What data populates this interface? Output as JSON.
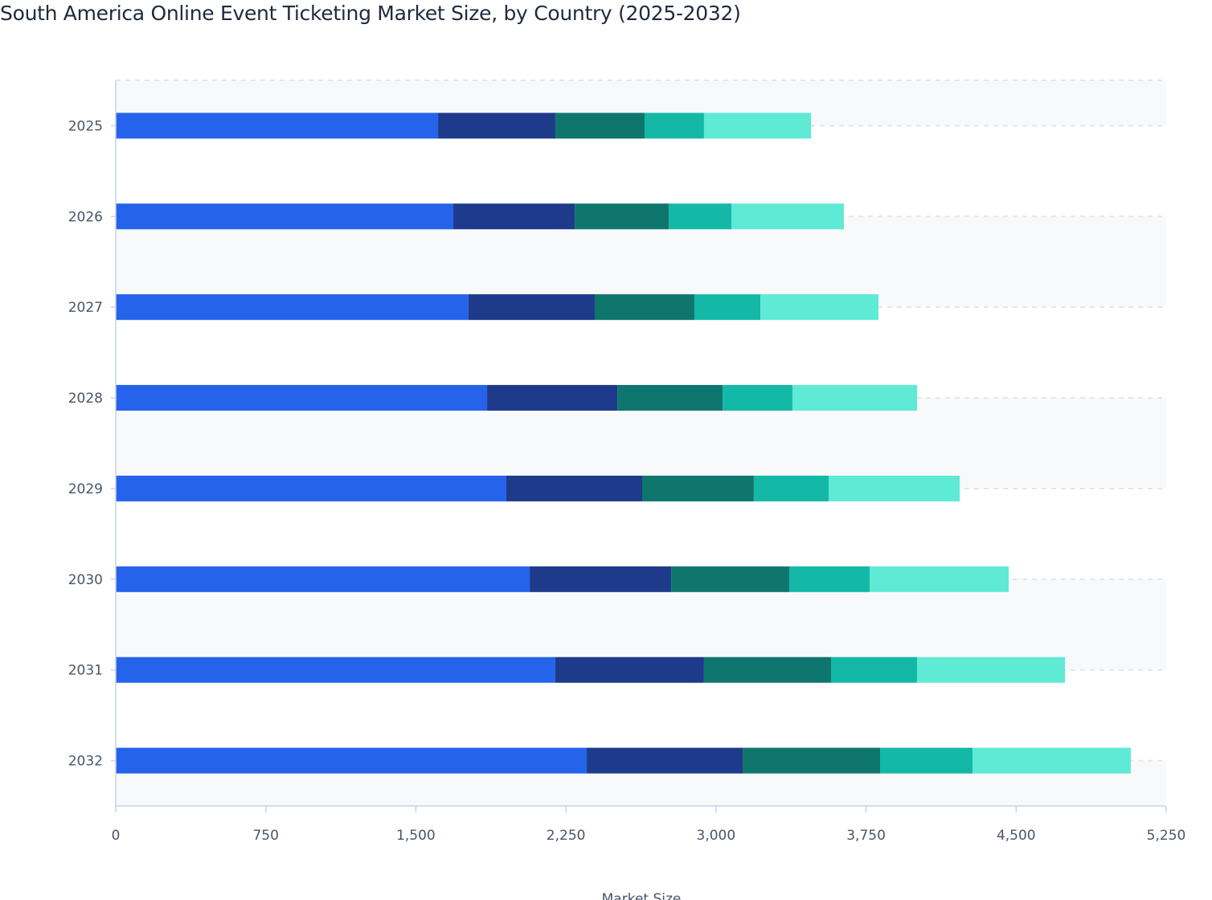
{
  "chart_data": {
    "type": "bar",
    "orientation": "horizontal",
    "stacked": true,
    "title": "South America Online Event Ticketing Market Size, by Country (2025-2032)",
    "xlabel": "Market Size",
    "ylabel": "",
    "xlim": [
      0,
      5250
    ],
    "xticks": [
      "0",
      "750",
      "1,500",
      "2,250",
      "3,000",
      "3,750",
      "4,500",
      "5,250"
    ],
    "xtick_values": [
      0,
      750,
      1500,
      2250,
      3000,
      3750,
      4500,
      5250
    ],
    "categories": [
      "2025",
      "2026",
      "2027",
      "2028",
      "2029",
      "2030",
      "2031",
      "2032"
    ],
    "grid": true,
    "legend": "none",
    "series": [
      {
        "color": "#2563eb",
        "values": [
          1611,
          1687,
          1763,
          1856,
          1952,
          2069,
          2197,
          2354
        ]
      },
      {
        "color": "#1e3a8a",
        "values": [
          586,
          607,
          631,
          651,
          679,
          707,
          743,
          779
        ]
      },
      {
        "color": "#0f766e",
        "values": [
          446,
          470,
          498,
          526,
          558,
          590,
          635,
          687
        ]
      },
      {
        "color": "#14b8a6",
        "values": [
          297,
          313,
          330,
          349,
          374,
          402,
          430,
          462
        ]
      },
      {
        "color": "#5eead4",
        "values": [
          535,
          562,
          590,
          623,
          655,
          695,
          739,
          791
        ]
      }
    ]
  }
}
